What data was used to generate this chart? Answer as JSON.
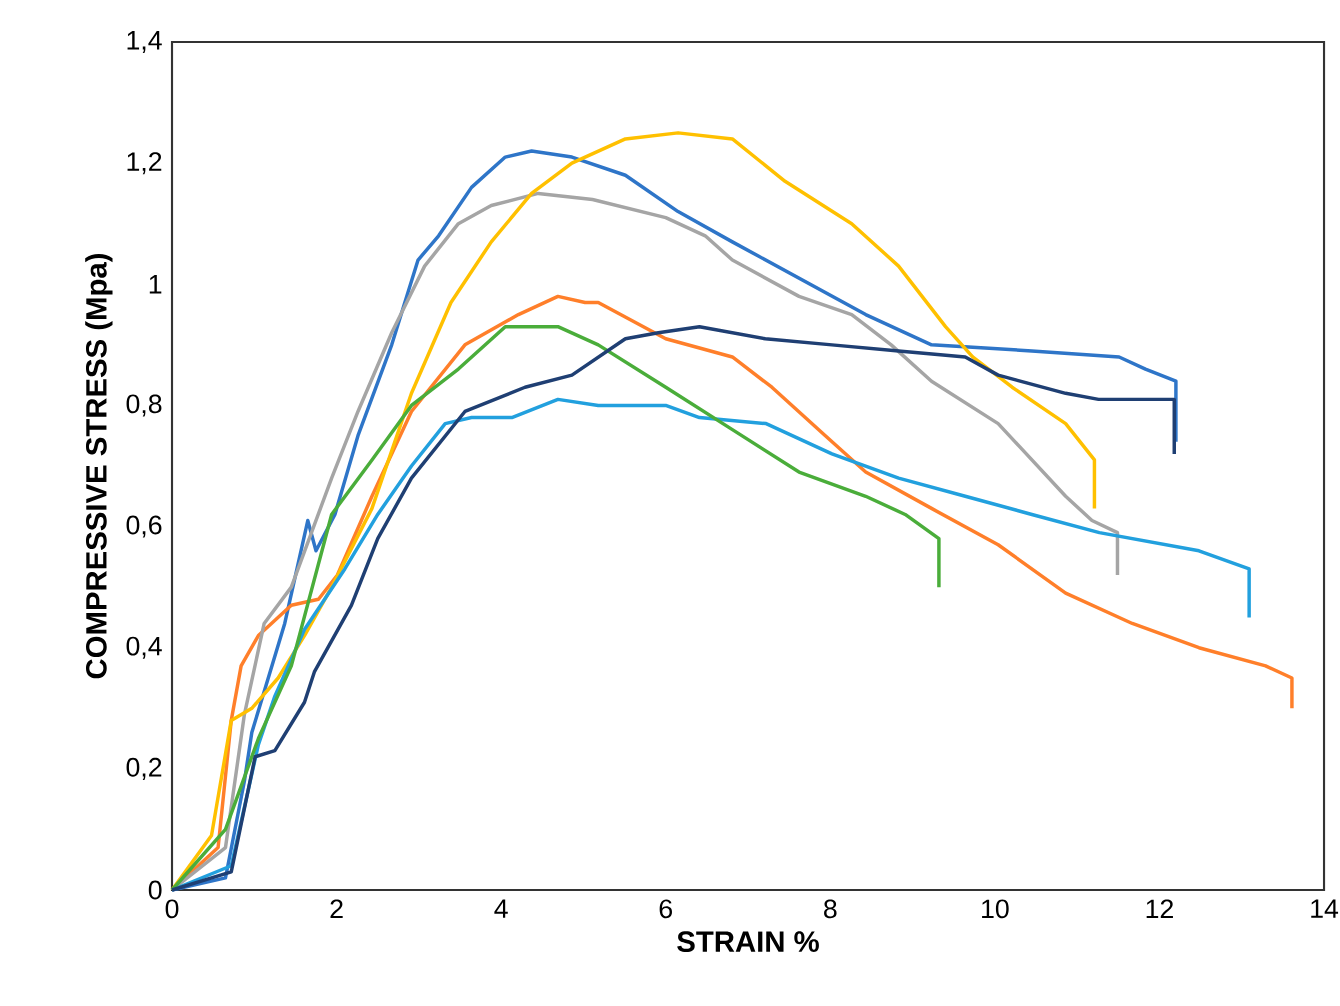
{
  "chart_data": {
    "type": "line",
    "xlabel": "STRAIN %",
    "ylabel": "COMPRESSIVE STRESS (Mpa)",
    "xlim": [
      0,
      14
    ],
    "ylim": [
      0,
      1.4
    ],
    "xticks": [
      0,
      2,
      4,
      6,
      8,
      10,
      12,
      14
    ],
    "yticks": [
      0,
      {
        "value": 0.2,
        "label": "0,2"
      },
      {
        "value": 0.4,
        "label": "0,4"
      },
      {
        "value": 0.6,
        "label": "0,6"
      },
      {
        "value": 0.8,
        "label": "0,8"
      },
      1,
      {
        "value": 1.2,
        "label": "1,2"
      },
      {
        "value": 1.4,
        "label": "1,4"
      }
    ],
    "series": [
      {
        "color": "#2e75c8",
        "x": [
          0,
          0.65,
          0.88,
          0.97,
          1.37,
          1.65,
          1.75,
          1.98,
          2.26,
          2.67,
          2.99,
          3.24,
          3.64,
          4.05,
          4.37,
          4.86,
          5.51,
          6.15,
          6.81,
          7.62,
          8.43,
          9.23,
          10.45,
          11.51,
          11.83,
          12.2,
          12.2
        ],
        "values": [
          0,
          0.02,
          0.18,
          0.26,
          0.44,
          0.61,
          0.56,
          0.62,
          0.75,
          0.9,
          1.04,
          1.08,
          1.16,
          1.21,
          1.22,
          1.21,
          1.18,
          1.12,
          1.07,
          1.01,
          0.95,
          0.9,
          0.89,
          0.88,
          0.86,
          0.84,
          0.74
        ]
      },
      {
        "color": "#ff7f2a",
        "x": [
          0,
          0.56,
          0.72,
          0.84,
          1.05,
          1.45,
          1.78,
          2.01,
          2.43,
          2.91,
          3.56,
          4.21,
          4.69,
          5.02,
          5.18,
          6.0,
          6.81,
          7.29,
          7.94,
          8.43,
          9.23,
          10.04,
          10.86,
          11.67,
          12.48,
          13.29,
          13.61,
          13.61
        ],
        "values": [
          0,
          0.07,
          0.28,
          0.37,
          0.42,
          0.47,
          0.48,
          0.52,
          0.65,
          0.79,
          0.9,
          0.95,
          0.98,
          0.97,
          0.97,
          0.91,
          0.88,
          0.83,
          0.75,
          0.69,
          0.63,
          0.57,
          0.49,
          0.44,
          0.4,
          0.37,
          0.35,
          0.3
        ]
      },
      {
        "color": "#a5a5a5",
        "x": [
          0,
          0.65,
          0.88,
          1.12,
          1.45,
          1.94,
          2.26,
          2.67,
          3.07,
          3.48,
          3.88,
          4.45,
          5.11,
          6.0,
          6.48,
          6.81,
          7.62,
          8.26,
          8.74,
          9.23,
          10.04,
          10.45,
          10.86,
          11.18,
          11.49,
          11.49
        ],
        "values": [
          0,
          0.07,
          0.29,
          0.44,
          0.5,
          0.68,
          0.79,
          0.92,
          1.03,
          1.1,
          1.13,
          1.15,
          1.14,
          1.11,
          1.08,
          1.04,
          0.98,
          0.95,
          0.9,
          0.84,
          0.77,
          0.71,
          0.65,
          0.61,
          0.59,
          0.52
        ]
      },
      {
        "color": "#ffc000",
        "x": [
          0,
          0.48,
          0.72,
          0.97,
          1.29,
          1.61,
          1.94,
          2.43,
          2.91,
          3.39,
          3.88,
          4.37,
          4.86,
          5.51,
          6.15,
          6.81,
          7.45,
          8.26,
          8.83,
          9.4,
          9.73,
          10.21,
          10.86,
          11.21,
          11.21
        ],
        "values": [
          0,
          0.09,
          0.28,
          0.3,
          0.35,
          0.42,
          0.5,
          0.63,
          0.82,
          0.97,
          1.07,
          1.15,
          1.2,
          1.24,
          1.25,
          1.24,
          1.17,
          1.1,
          1.03,
          0.93,
          0.88,
          0.83,
          0.77,
          0.71,
          0.63
        ]
      },
      {
        "color": "#22a0de",
        "x": [
          0,
          0.72,
          1.05,
          1.25,
          1.61,
          2.1,
          2.5,
          2.91,
          3.32,
          3.64,
          4.13,
          4.69,
          5.18,
          6.0,
          6.41,
          7.22,
          8.02,
          8.83,
          9.64,
          10.45,
          11.27,
          12.48,
          13.09,
          13.09
        ],
        "values": [
          0,
          0.04,
          0.24,
          0.32,
          0.43,
          0.53,
          0.62,
          0.7,
          0.77,
          0.78,
          0.78,
          0.81,
          0.8,
          0.8,
          0.78,
          0.77,
          0.72,
          0.68,
          0.65,
          0.62,
          0.59,
          0.56,
          0.53,
          0.45
        ]
      },
      {
        "color": "#4aad3a",
        "x": [
          0,
          0.65,
          1.05,
          1.45,
          1.94,
          2.43,
          2.91,
          3.48,
          4.05,
          4.69,
          5.18,
          6.0,
          6.81,
          7.62,
          8.43,
          8.91,
          9.32,
          9.32
        ],
        "values": [
          0,
          0.1,
          0.25,
          0.37,
          0.62,
          0.71,
          0.8,
          0.86,
          0.93,
          0.93,
          0.9,
          0.83,
          0.76,
          0.69,
          0.65,
          0.62,
          0.58,
          0.5
        ]
      },
      {
        "color": "#1f3f73",
        "x": [
          0,
          0.72,
          1.01,
          1.25,
          1.61,
          1.73,
          2.18,
          2.5,
          2.91,
          3.56,
          4.29,
          4.86,
          5.51,
          5.91,
          6.41,
          7.21,
          8.02,
          8.83,
          9.64,
          10.04,
          10.86,
          11.26,
          12.18,
          12.18
        ],
        "values": [
          0,
          0.03,
          0.22,
          0.23,
          0.31,
          0.36,
          0.47,
          0.58,
          0.68,
          0.79,
          0.83,
          0.85,
          0.91,
          0.92,
          0.93,
          0.91,
          0.9,
          0.89,
          0.88,
          0.85,
          0.82,
          0.81,
          0.81,
          0.72
        ]
      }
    ]
  }
}
